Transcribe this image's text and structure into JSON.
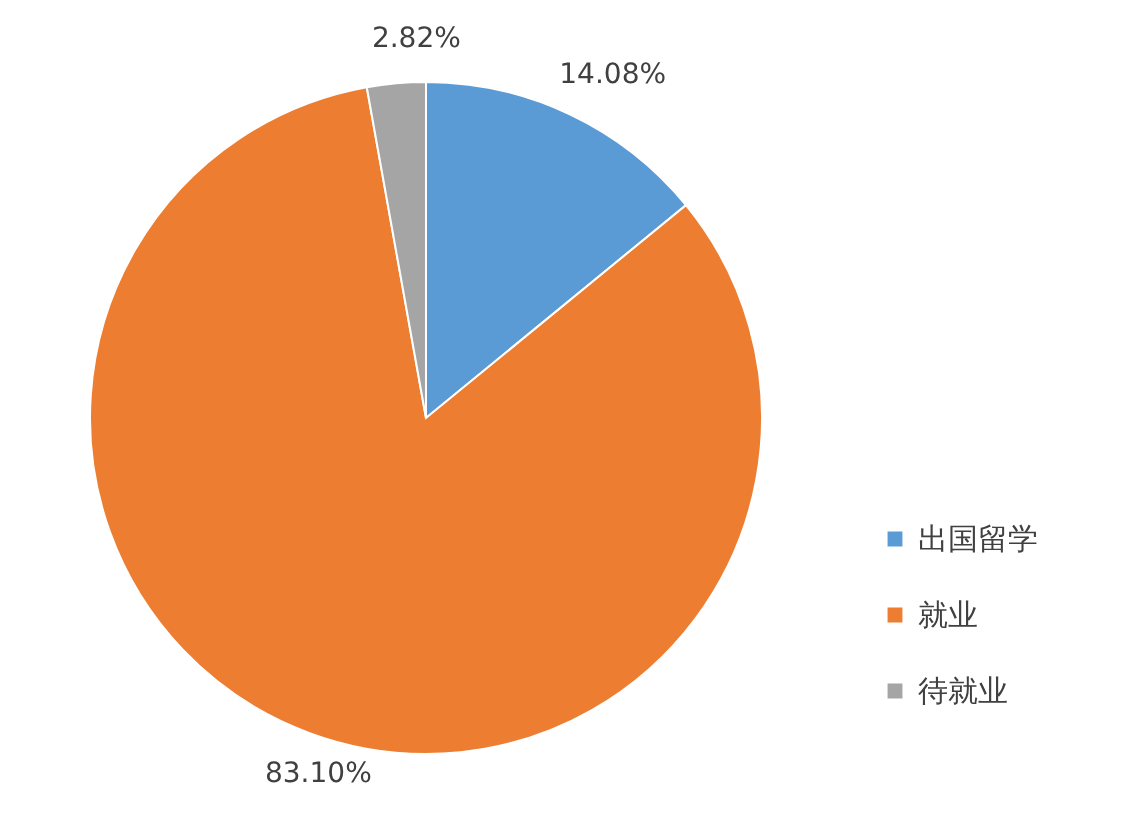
{
  "chart_data": {
    "type": "pie",
    "categories": [
      "出国留学",
      "就业",
      "待就业"
    ],
    "values": [
      14.08,
      83.1,
      2.82
    ],
    "colors": [
      "#5b9bd5",
      "#ed7d31",
      "#a5a5a5"
    ],
    "value_labels": [
      "14.08%",
      "83.10%",
      "2.82%"
    ],
    "legend": "bottom right"
  }
}
